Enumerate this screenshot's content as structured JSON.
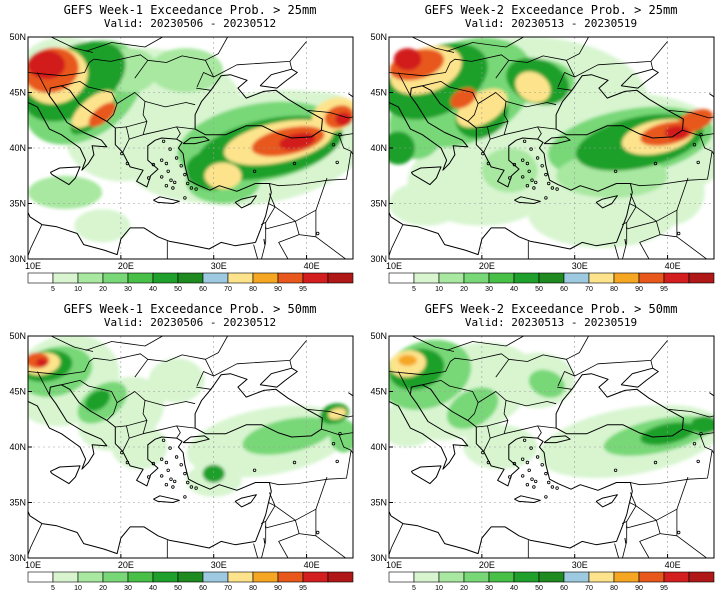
{
  "panels": [
    {
      "id": "w1-25",
      "title": "GEFS Week-1 Exceedance Prob. > 25mm",
      "valid": "Valid: 20230506 - 20230512",
      "left": 0,
      "top": 0
    },
    {
      "id": "w2-25",
      "title": "GEFS Week-2 Exceedance Prob. > 25mm",
      "valid": "Valid: 20230513 - 20230519",
      "left": 361,
      "top": 0
    },
    {
      "id": "w1-50",
      "title": "GEFS Week-1 Exceedance Prob. > 50mm",
      "valid": "Valid: 20230506 - 20230512",
      "left": 0,
      "top": 299
    },
    {
      "id": "w2-50",
      "title": "GEFS Week-2 Exceedance Prob. > 50mm",
      "valid": "Valid: 20230513 - 20230519",
      "left": 361,
      "top": 299
    }
  ],
  "axes": {
    "x_ticks": [
      "10E",
      "20E",
      "30E",
      "40E"
    ],
    "y_ticks": [
      "50N",
      "45N",
      "40N",
      "35N",
      "30N"
    ],
    "lon_range": [
      10,
      45
    ],
    "lat_range": [
      30,
      50
    ]
  },
  "colorbar": {
    "labels": [
      "5",
      "10",
      "20",
      "30",
      "40",
      "50",
      "60",
      "70",
      "80",
      "90",
      "95"
    ],
    "colors": [
      "#ffffff",
      "#d8f5d0",
      "#a8e8a0",
      "#78d878",
      "#48c048",
      "#1fa02c",
      "#1f8a20",
      "#9ecae1",
      "#fde48c",
      "#f5a622",
      "#e8581c",
      "#d21e1e",
      "#b01818"
    ]
  }
}
